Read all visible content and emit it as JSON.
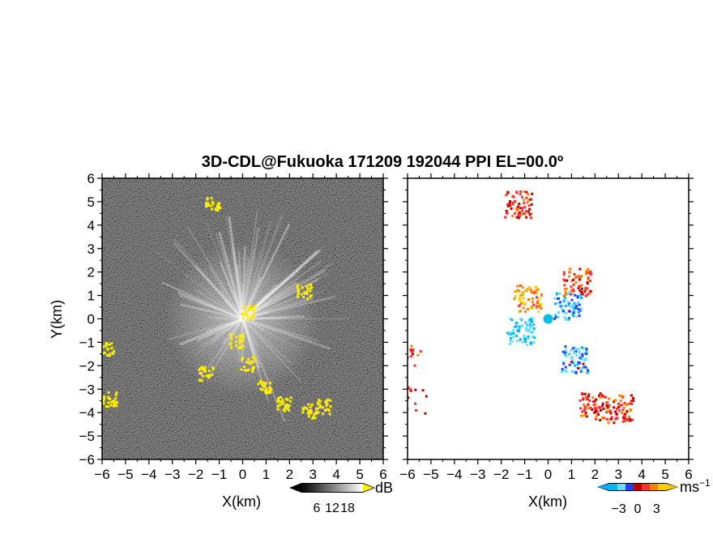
{
  "chart_data": [
    {
      "type": "heatmap",
      "panel": "reflectivity",
      "title": "3D-CDL@Fukuoka 171209 192044 PPI EL=00.0º",
      "xlabel": "X(km)",
      "ylabel": "Y(km)",
      "xlim": [
        -6,
        6
      ],
      "ylim": [
        -6,
        6
      ],
      "x_ticks": [
        "−6",
        "−5",
        "−4",
        "−3",
        "−2",
        "−1",
        "0",
        "1",
        "2",
        "3",
        "4",
        "5",
        "6"
      ],
      "y_ticks": [
        "6",
        "5",
        "4",
        "3",
        "2",
        "1",
        "0",
        "−1",
        "−2",
        "−3",
        "−4",
        "−5",
        "−6"
      ],
      "background_color": "#2b2b2b",
      "highlight_color": "#ffee00",
      "colorbar": {
        "unit": "dB",
        "ticks": [
          "6",
          "12",
          "18"
        ],
        "range": [
          0,
          24
        ]
      },
      "highlight_regions": [
        {
          "x": -0.3,
          "y": -0.9
        },
        {
          "x": 0.2,
          "y": -1.9
        },
        {
          "x": 0.9,
          "y": -2.9
        },
        {
          "x": 1.7,
          "y": -3.6
        },
        {
          "x": 2.8,
          "y": -3.9
        },
        {
          "x": 3.4,
          "y": -3.7
        },
        {
          "x": -5.85,
          "y": -1.3
        },
        {
          "x": -5.7,
          "y": -3.4
        },
        {
          "x": -1.6,
          "y": -2.3
        },
        {
          "x": -1.3,
          "y": 4.9
        },
        {
          "x": 2.6,
          "y": 1.2
        },
        {
          "x": 0.2,
          "y": 0.3
        }
      ]
    },
    {
      "type": "heatmap",
      "panel": "doppler-velocity",
      "xlabel": "X(km)",
      "xlim": [
        -6,
        6
      ],
      "ylim": [
        -6,
        6
      ],
      "x_ticks": [
        "−6",
        "−5",
        "−4",
        "−3",
        "−2",
        "−1",
        "0",
        "1",
        "2",
        "3",
        "4",
        "5",
        "6"
      ],
      "colorbar": {
        "unit": "ms",
        "unit_exponent": "−1",
        "ticks": [
          "−3",
          "0",
          "3"
        ],
        "range": [
          -4.5,
          4.5
        ],
        "colors": [
          "#00b4ff",
          "#66ddff",
          "#2040ff",
          "#c00000",
          "#ff3030",
          "#ff8000",
          "#ffcc00"
        ]
      },
      "velocity_clusters": [
        {
          "x": 0.8,
          "y": 0.6,
          "v": -2.5
        },
        {
          "x": 1.2,
          "y": 1.6,
          "v": 1.5
        },
        {
          "x": -0.9,
          "y": 0.9,
          "v": 3.0
        },
        {
          "x": -1.2,
          "y": -0.5,
          "v": -3.5
        },
        {
          "x": 1.1,
          "y": -1.7,
          "v": -2.0
        },
        {
          "x": 1.9,
          "y": -3.7,
          "v": 1.0
        },
        {
          "x": 3.0,
          "y": -3.8,
          "v": 1.2
        },
        {
          "x": -5.9,
          "y": -1.4,
          "v": 1.2
        },
        {
          "x": -5.8,
          "y": -3.4,
          "v": 1.0
        },
        {
          "x": -1.3,
          "y": 4.9,
          "v": 1.0
        }
      ]
    }
  ]
}
